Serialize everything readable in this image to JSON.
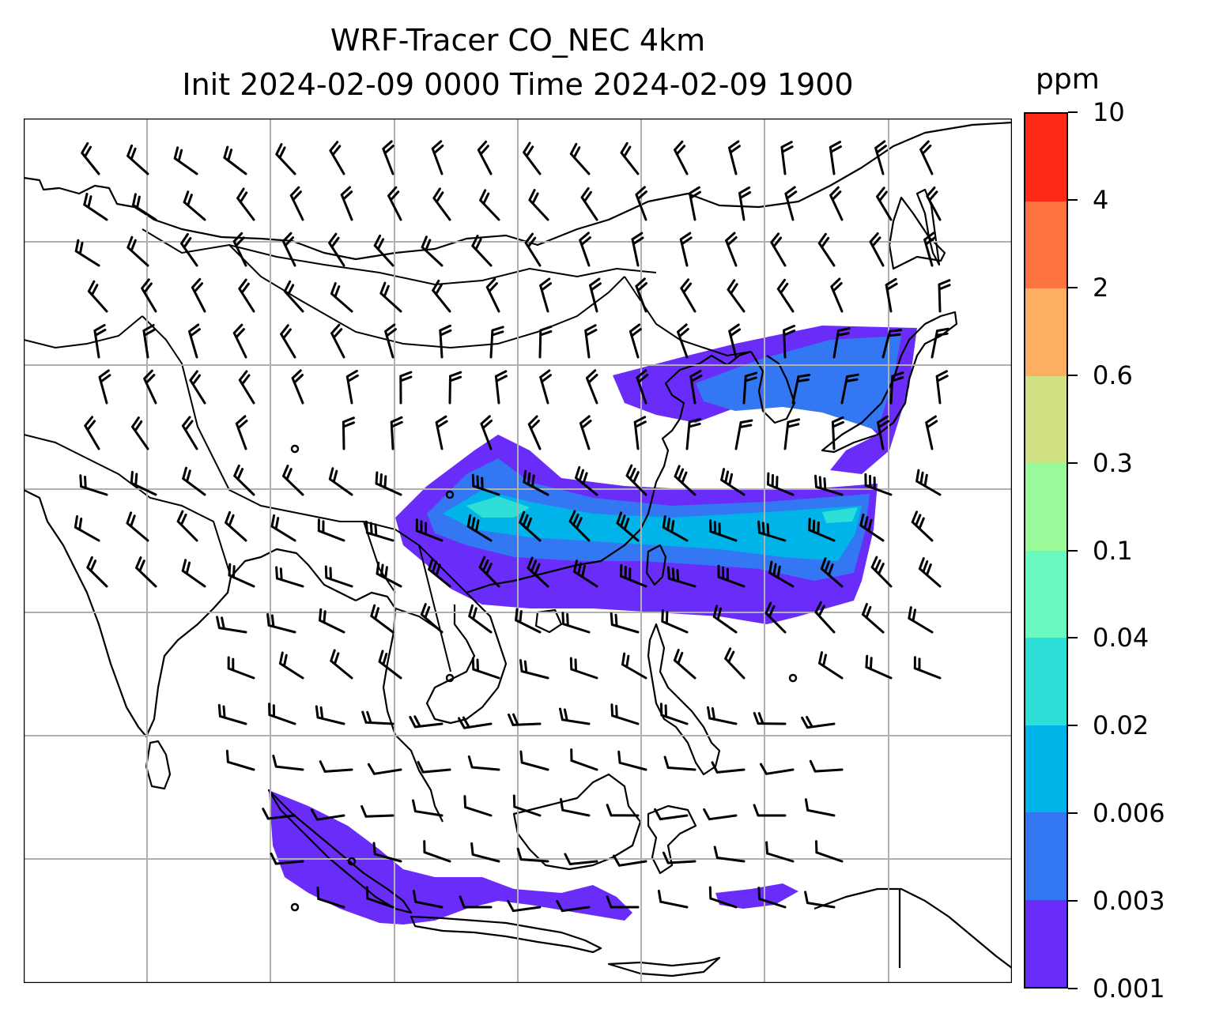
{
  "title": {
    "line1": "WRF-Tracer CO_NEC 4km",
    "line2": "Init 2024-02-09 0000 Time 2024-02-09 1900"
  },
  "colorbar": {
    "unit": "ppm",
    "levels": [
      "0.001",
      "0.003",
      "0.006",
      "0.02",
      "0.04",
      "0.1",
      "0.3",
      "0.6",
      "2",
      "4",
      "10"
    ],
    "colors": [
      "#6a2cf9",
      "#3477f2",
      "#00b4ea",
      "#2ddfd6",
      "#6afac0",
      "#9afa9a",
      "#cfe182",
      "#fdae61",
      "#ff7340",
      "#fd2a18"
    ]
  },
  "map": {
    "field": "CO_NEC",
    "overlay": "wind barbs",
    "gridlines": true
  }
}
